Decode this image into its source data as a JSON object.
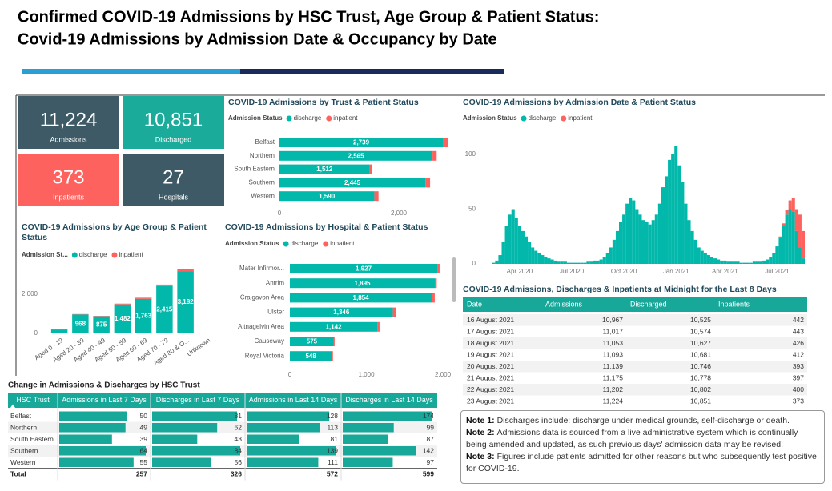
{
  "header": {
    "title_lines": [
      "Confirmed COVID-19 Admissions by HSC Trust, Age Group & Patient Status:",
      "Covid-19 Admissions by Admission Date & Occupancy by Date"
    ]
  },
  "kpis": [
    {
      "value": "11,224",
      "label": "Admissions"
    },
    {
      "value": "10,851",
      "label": "Discharged"
    },
    {
      "value": "373",
      "label": "Inpatients"
    },
    {
      "value": "27",
      "label": "Hospitals"
    }
  ],
  "chart_data": [
    {
      "type": "barh",
      "title": "COVID-19 Admissions by Trust & Patient Status",
      "legend_title": "Admission Status",
      "categories": [
        "Belfast",
        "Northern",
        "South Eastern",
        "Southern",
        "Western"
      ],
      "series": [
        {
          "name": "discharge",
          "color": "#01b8aa",
          "values": [
            2739,
            2565,
            1512,
            2445,
            1590
          ],
          "value_labels": [
            "2,739",
            "2,565",
            "1,512",
            "2,445",
            "1,590"
          ]
        },
        {
          "name": "inpatient",
          "color": "#fd625e",
          "values": [
            90,
            70,
            40,
            80,
            70
          ]
        }
      ],
      "xlim": [
        0,
        2850
      ],
      "xticks": [
        0,
        {
          "value": 2000,
          "label": "2,000"
        }
      ]
    },
    {
      "type": "bar",
      "title": "COVID-19 Admissions by Age Group & Patient Status",
      "legend_title": "Admission St...",
      "categories": [
        "Aged 0 - 19",
        "Aged 20 - 39",
        "Aged 40 - 49",
        "Aged 50 - 59",
        "Aged 60 - 69",
        "Aged 70 - 79",
        "Aged 80 & O...",
        "Unknown"
      ],
      "series": [
        {
          "name": "discharge",
          "color": "#01b8aa",
          "values": [
            200,
            968,
            875,
            1482,
            1763,
            2415,
            3182,
            20
          ],
          "value_labels": [
            null,
            "968",
            "875",
            "1,482",
            "1,763",
            "2,415",
            "3,182",
            null
          ]
        },
        {
          "name": "inpatient",
          "color": "#fd625e",
          "values": [
            5,
            20,
            20,
            40,
            60,
            80,
            110,
            0
          ]
        }
      ],
      "ylim": [
        0,
        3500
      ],
      "yticks": [
        0,
        {
          "value": 2000,
          "label": "2,000"
        }
      ]
    },
    {
      "type": "barh",
      "title": "COVID-19 Admissions by Hospital & Patient Status",
      "legend_title": "Admission Status",
      "categories": [
        "Mater Infirmor...",
        "Antrim",
        "Craigavon Area",
        "Ulster",
        "Altnagelvin Area",
        "Causeway",
        "Royal Victoria"
      ],
      "series": [
        {
          "name": "discharge",
          "color": "#01b8aa",
          "values": [
            1927,
            1895,
            1854,
            1346,
            1142,
            575,
            548
          ],
          "value_labels": [
            "1,927",
            "1,895",
            "1,854",
            "1,346",
            "1,142",
            "575",
            "548"
          ]
        },
        {
          "name": "inpatient",
          "color": "#fd625e",
          "values": [
            30,
            25,
            40,
            40,
            30,
            10,
            15
          ]
        }
      ],
      "xlim": [
        0,
        2100
      ],
      "xticks": [
        0,
        {
          "value": 1000,
          "label": "1,000"
        },
        {
          "value": 2000,
          "label": "2,000"
        }
      ]
    },
    {
      "type": "bar",
      "title": "COVID-19 Admissions by Admission Date & Patient Status",
      "legend_title": "Admission Status",
      "categories": [
        null,
        null,
        null,
        null,
        null,
        null,
        null,
        null,
        null,
        null,
        null,
        null,
        "Apr 2020",
        null,
        null,
        null,
        null,
        null,
        null,
        null,
        null,
        null,
        null,
        null,
        null,
        null,
        null,
        null,
        "Jul 2020",
        null,
        null,
        null,
        null,
        null,
        null,
        null,
        null,
        null,
        null,
        null,
        null,
        null,
        null,
        null,
        "Oct 2020",
        null,
        null,
        null,
        null,
        null,
        null,
        null,
        null,
        null,
        null,
        null,
        null,
        null,
        null,
        null,
        "Jan 2021",
        null,
        null,
        null,
        null,
        null,
        null,
        null,
        null,
        null,
        null,
        null,
        null,
        null,
        null,
        "Apr 2021",
        null,
        null,
        null,
        null,
        null,
        null,
        null,
        null,
        null,
        null,
        null,
        null,
        null,
        null,
        null,
        "Jul 2021",
        null,
        null,
        null,
        null,
        null,
        null,
        null,
        null
      ],
      "series": [
        {
          "name": "discharge",
          "color": "#01b8aa",
          "values": [
            0,
            0,
            0,
            0,
            1,
            3,
            8,
            20,
            35,
            45,
            50,
            42,
            35,
            30,
            25,
            20,
            15,
            12,
            10,
            8,
            6,
            5,
            4,
            3,
            2,
            2,
            2,
            1,
            1,
            1,
            1,
            1,
            1,
            2,
            2,
            3,
            3,
            4,
            6,
            10,
            15,
            22,
            30,
            38,
            45,
            55,
            60,
            58,
            50,
            45,
            40,
            38,
            36,
            40,
            45,
            55,
            70,
            80,
            95,
            100,
            108,
            90,
            75,
            55,
            40,
            30,
            22,
            15,
            12,
            10,
            8,
            6,
            5,
            4,
            3,
            3,
            2,
            2,
            2,
            2,
            1,
            1,
            1,
            1,
            2,
            2,
            2,
            3,
            4,
            6,
            10,
            16,
            24,
            35,
            45,
            50,
            48,
            30,
            15,
            5
          ]
        },
        {
          "name": "inpatient",
          "color": "#fd625e",
          "values": [
            0,
            0,
            0,
            0,
            0,
            0,
            0,
            0,
            0,
            0,
            0,
            0,
            0,
            0,
            0,
            0,
            0,
            0,
            0,
            0,
            0,
            0,
            0,
            0,
            0,
            0,
            0,
            0,
            0,
            0,
            0,
            0,
            0,
            0,
            0,
            0,
            0,
            0,
            0,
            0,
            0,
            0,
            0,
            0,
            0,
            0,
            0,
            0,
            0,
            0,
            0,
            0,
            0,
            0,
            0,
            0,
            0,
            0,
            0,
            0,
            0,
            0,
            0,
            0,
            0,
            0,
            0,
            0,
            0,
            0,
            0,
            0,
            0,
            0,
            0,
            0,
            0,
            0,
            0,
            0,
            0,
            0,
            0,
            0,
            0,
            0,
            0,
            0,
            0,
            0,
            0,
            0,
            1,
            2,
            4,
            8,
            12,
            20,
            30,
            25
          ]
        }
      ],
      "ylim": [
        0,
        110
      ],
      "yticks": [
        0,
        50,
        100
      ]
    }
  ],
  "daily_table": {
    "title": "COVID-19 Admissions, Discharges & Inpatients at Midnight for the Last 8 Days",
    "columns": [
      "Date",
      "Admissions",
      "Discharged",
      "Inpatients"
    ],
    "rows": [
      [
        "16 August 2021",
        "10,967",
        "10,525",
        "442"
      ],
      [
        "17 August 2021",
        "11,017",
        "10,574",
        "443"
      ],
      [
        "18 August 2021",
        "11,053",
        "10,627",
        "426"
      ],
      [
        "19 August 2021",
        "11,093",
        "10,681",
        "412"
      ],
      [
        "20 August 2021",
        "11,139",
        "10,746",
        "393"
      ],
      [
        "21 August 2021",
        "11,175",
        "10,778",
        "397"
      ],
      [
        "22 August 2021",
        "11,202",
        "10,802",
        "400"
      ],
      [
        "23 August 2021",
        "11,224",
        "10,851",
        "373"
      ]
    ]
  },
  "trust_change_table": {
    "title": "Change in Admissions & Discharges by HSC Trust",
    "columns": [
      "HSC Trust",
      "Admissions in Last 7 Days",
      "Discharges in Last 7 Days",
      "Admissions in Last 14 Days",
      "Discharges in Last 14 Days"
    ],
    "rows": [
      [
        "Belfast",
        50,
        81,
        128,
        174
      ],
      [
        "Northern",
        49,
        62,
        113,
        99
      ],
      [
        "South Eastern",
        39,
        43,
        81,
        87
      ],
      [
        "Southern",
        64,
        84,
        139,
        142
      ],
      [
        "Western",
        55,
        56,
        111,
        97
      ]
    ],
    "total": [
      "Total",
      257,
      326,
      572,
      599
    ]
  },
  "notes": [
    {
      "label": "Note 1:",
      "text": "Discharges include: discharge under medical grounds, self-discharge or death."
    },
    {
      "label": "Note 2:",
      "text": "Admissions data is sourced from a live administrative system which is continually being amended and updated, as such previous days' admission data may be revised."
    },
    {
      "label": "Note 3:",
      "text": "Figures include patients admitted for other reasons but who subsequently test positive for COVID-19."
    }
  ]
}
